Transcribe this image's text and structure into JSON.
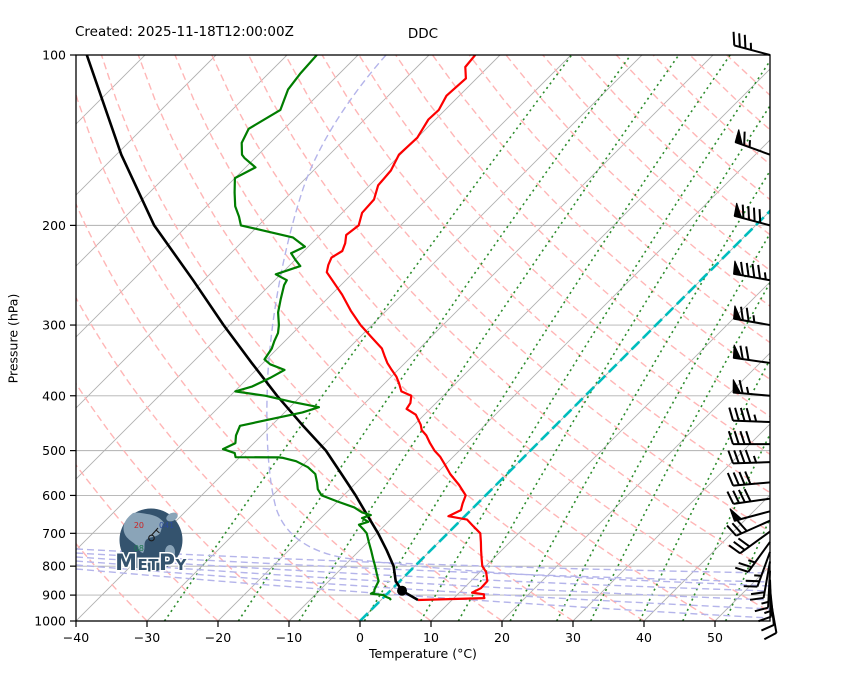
{
  "header": {
    "created": "Created: 2025-11-18T12:00:00Z",
    "station_id": "DDC"
  },
  "axes": {
    "x_label": "Temperature (°C)",
    "y_label": "Pressure (hPa)",
    "x_ticks": [
      -40,
      -30,
      -20,
      -10,
      0,
      10,
      20,
      30,
      40,
      50
    ],
    "y_ticks": [
      100,
      200,
      300,
      400,
      500,
      600,
      700,
      800,
      900,
      1000
    ]
  },
  "chart_data": {
    "type": "skewt-log-p",
    "title": "DDC",
    "valid_time": "2025-11-18T12:00:00Z",
    "xlabel": "Temperature (°C)",
    "ylabel": "Pressure (hPa)",
    "pressure_range_hpa": [
      1000,
      100
    ],
    "temperature_axis_range_c": [
      -40,
      58
    ],
    "skew_angle_deg": 45,
    "isotherm_step_c": 10,
    "highlight_isotherm_c": 0,
    "dry_adiabats_theta_c": {
      "start": -30,
      "end": 200,
      "step": 10
    },
    "mixing_ratio_lines_g_kg": [
      0.4,
      1,
      2,
      4,
      7,
      10,
      16,
      24,
      32,
      48,
      68,
      96
    ],
    "lcl": {
      "pressure_hpa": 884,
      "temperature_c": 1.65
    },
    "temperature_profile": [
      [
        918,
        5.2
      ],
      [
        911,
        14.3
      ],
      [
        905,
        14.0
      ],
      [
        897,
        13.7
      ],
      [
        891,
        11.8
      ],
      [
        875,
        12.4
      ],
      [
        850,
        12.3
      ],
      [
        820,
        10.9
      ],
      [
        800,
        9.5
      ],
      [
        775,
        8.3
      ],
      [
        750,
        7.1
      ],
      [
        725,
        5.9
      ],
      [
        700,
        4.6
      ],
      [
        680,
        2.6
      ],
      [
        662,
        0.8
      ],
      [
        653,
        -2.3
      ],
      [
        637,
        -1.4
      ],
      [
        620,
        -2.1
      ],
      [
        600,
        -2.8
      ],
      [
        575,
        -5.2
      ],
      [
        550,
        -8.0
      ],
      [
        530,
        -10.0
      ],
      [
        513,
        -11.8
      ],
      [
        500,
        -13.5
      ],
      [
        485,
        -15.2
      ],
      [
        470,
        -16.8
      ],
      [
        460,
        -18.2
      ],
      [
        450,
        -19.1
      ],
      [
        432,
        -21.2
      ],
      [
        422,
        -23.3
      ],
      [
        412,
        -23.6
      ],
      [
        400,
        -24.5
      ],
      [
        393,
        -26.5
      ],
      [
        380,
        -28.0
      ],
      [
        370,
        -29.3
      ],
      [
        360,
        -30.9
      ],
      [
        350,
        -32.5
      ],
      [
        340,
        -33.9
      ],
      [
        330,
        -35.3
      ],
      [
        315,
        -38.4
      ],
      [
        300,
        -41.6
      ],
      [
        283,
        -45.0
      ],
      [
        265,
        -48.5
      ],
      [
        250,
        -51.9
      ],
      [
        242,
        -53.8
      ],
      [
        235,
        -54.6
      ],
      [
        228,
        -55.2
      ],
      [
        222,
        -54.6
      ],
      [
        215,
        -55.3
      ],
      [
        208,
        -56.3
      ],
      [
        200,
        -55.9
      ],
      [
        190,
        -57.2
      ],
      [
        180,
        -57.4
      ],
      [
        170,
        -58.8
      ],
      [
        160,
        -59.1
      ],
      [
        150,
        -60.2
      ],
      [
        140,
        -60.0
      ],
      [
        130,
        -61.0
      ],
      [
        125,
        -60.9
      ],
      [
        118,
        -61.8
      ],
      [
        110,
        -61.5
      ],
      [
        105,
        -63.2
      ],
      [
        100,
        -63.5
      ]
    ],
    "dewpoint_profile": [
      [
        918,
        1.4
      ],
      [
        912,
        1.0
      ],
      [
        906,
        0.2
      ],
      [
        900,
        -0.3
      ],
      [
        895,
        -2.3
      ],
      [
        888,
        -2.1
      ],
      [
        880,
        -2.4
      ],
      [
        865,
        -2.7
      ],
      [
        850,
        -3.0
      ],
      [
        825,
        -4.3
      ],
      [
        800,
        -5.6
      ],
      [
        775,
        -7.0
      ],
      [
        750,
        -8.4
      ],
      [
        725,
        -9.9
      ],
      [
        700,
        -11.4
      ],
      [
        688,
        -12.5
      ],
      [
        676,
        -13.7
      ],
      [
        668,
        -12.8
      ],
      [
        658,
        -14.2
      ],
      [
        650,
        -13.4
      ],
      [
        643,
        -15.0
      ],
      [
        630,
        -16.8
      ],
      [
        615,
        -20.0
      ],
      [
        600,
        -23.1
      ],
      [
        585,
        -24.5
      ],
      [
        570,
        -25.5
      ],
      [
        550,
        -27.0
      ],
      [
        535,
        -29.0
      ],
      [
        522,
        -31.5
      ],
      [
        515,
        -33.8
      ],
      [
        514,
        -34.5
      ],
      [
        513.5,
        -40.6
      ],
      [
        505,
        -41.3
      ],
      [
        497,
        -43.5
      ],
      [
        485,
        -42.6
      ],
      [
        470,
        -43.6
      ],
      [
        452,
        -44.4
      ],
      [
        440,
        -41.0
      ],
      [
        428,
        -37.5
      ],
      [
        419,
        -35.9
      ],
      [
        410,
        -40.5
      ],
      [
        400,
        -45.0
      ],
      [
        393,
        -49.9
      ],
      [
        385,
        -48.2
      ],
      [
        372,
        -46.9
      ],
      [
        360,
        -46.0
      ],
      [
        352,
        -48.8
      ],
      [
        345,
        -50.3
      ],
      [
        330,
        -50.8
      ],
      [
        320,
        -51.5
      ],
      [
        310,
        -52.1
      ],
      [
        300,
        -53.1
      ],
      [
        285,
        -55.0
      ],
      [
        270,
        -56.5
      ],
      [
        255,
        -58.0
      ],
      [
        250,
        -58.3
      ],
      [
        244,
        -60.7
      ],
      [
        236,
        -58.4
      ],
      [
        230,
        -60.0
      ],
      [
        224,
        -61.5
      ],
      [
        218,
        -60.5
      ],
      [
        210,
        -63.5
      ],
      [
        200,
        -72.5
      ],
      [
        193,
        -74.0
      ],
      [
        185,
        -76.0
      ],
      [
        175,
        -78.0
      ],
      [
        165,
        -80.0
      ],
      [
        158,
        -78.6
      ],
      [
        152,
        -81.5
      ],
      [
        150,
        -82.3
      ],
      [
        143,
        -84.0
      ],
      [
        135,
        -85.0
      ],
      [
        125,
        -83.2
      ],
      [
        115,
        -85.0
      ],
      [
        108,
        -85.5
      ],
      [
        100,
        -85.8
      ]
    ],
    "parcel_profile": [
      [
        918,
        5.2
      ],
      [
        884,
        1.65
      ],
      [
        850,
        -0.6
      ],
      [
        800,
        -3.0
      ],
      [
        750,
        -6.2
      ],
      [
        700,
        -9.8
      ],
      [
        650,
        -13.9
      ],
      [
        600,
        -18.3
      ],
      [
        550,
        -23.3
      ],
      [
        500,
        -28.8
      ],
      [
        450,
        -35.8
      ],
      [
        400,
        -43.4
      ],
      [
        350,
        -51.6
      ],
      [
        300,
        -60.9
      ],
      [
        250,
        -71.5
      ],
      [
        200,
        -84.7
      ],
      [
        150,
        -99.3
      ],
      [
        100,
        -118.2
      ]
    ],
    "wind_barbs": [
      [
        100,
        35,
        285
      ],
      [
        150,
        65,
        290
      ],
      [
        200,
        90,
        285
      ],
      [
        250,
        95,
        280
      ],
      [
        300,
        75,
        280
      ],
      [
        350,
        70,
        278
      ],
      [
        400,
        65,
        275
      ],
      [
        445,
        45,
        272
      ],
      [
        487,
        40,
        270
      ],
      [
        524,
        45,
        268
      ],
      [
        569,
        40,
        265
      ],
      [
        608,
        40,
        262
      ],
      [
        640,
        50,
        255
      ],
      [
        665,
        30,
        246
      ],
      [
        695,
        30,
        234
      ],
      [
        725,
        25,
        216
      ],
      [
        755,
        25,
        200
      ],
      [
        785,
        20,
        190
      ],
      [
        815,
        15,
        183
      ],
      [
        845,
        15,
        178
      ],
      [
        875,
        10,
        174
      ],
      [
        905,
        10,
        170
      ]
    ]
  },
  "legend_colors": {
    "temperature": "#fd0000",
    "dewpoint": "#007d00",
    "parcel": "#000000",
    "zero_isotherm": "#00bdbd",
    "dry_adiabat": "#ffb6b6",
    "moist_adiabat": "#b4b4ea",
    "mixing_ratio": "#2c8c2c",
    "grid": "#b0b0b0"
  },
  "watermark": {
    "brand": "MetPy",
    "station_plot": {
      "temperature": "20",
      "pressure": "041",
      "dewpoint": "08"
    }
  }
}
